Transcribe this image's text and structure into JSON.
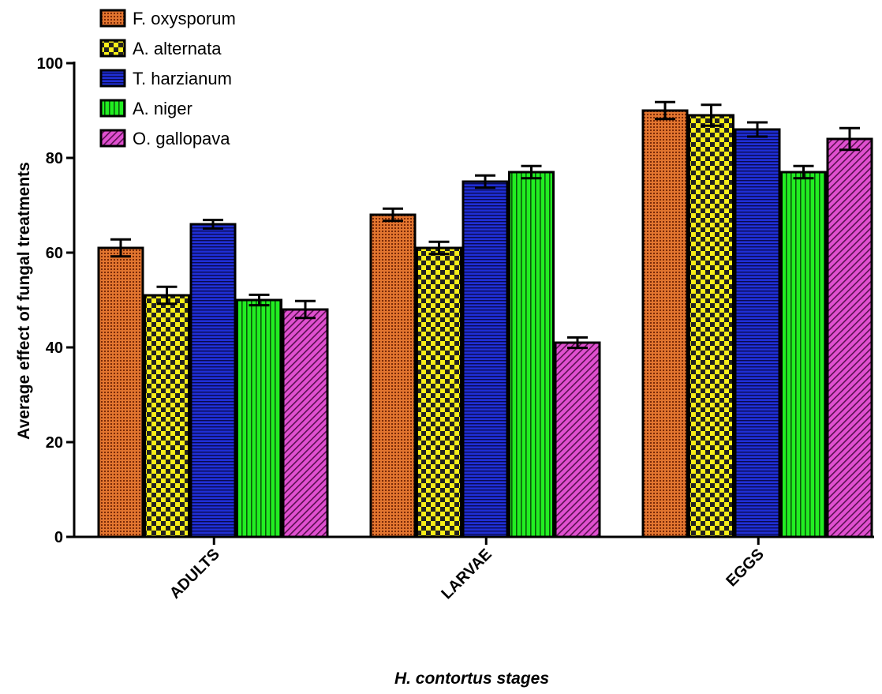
{
  "chart_data": {
    "type": "bar",
    "title": "",
    "xlabel": "H. contortus stages",
    "ylabel": "Average effect of fungal treatments",
    "ylim": [
      0,
      100
    ],
    "yticks": [
      0,
      20,
      40,
      60,
      80,
      100
    ],
    "categories": [
      "ADULTS",
      "LARVAE",
      "EGGS"
    ],
    "legend_position": "top-left",
    "grid": false,
    "series": [
      {
        "name": "F. oxysporum",
        "values": [
          61,
          68,
          90
        ],
        "errors": [
          1.8,
          1.3,
          1.8
        ],
        "color": "#e2752f",
        "pattern": "dots"
      },
      {
        "name": "A. alternata",
        "values": [
          51,
          61,
          89
        ],
        "errors": [
          1.8,
          1.3,
          2.2
        ],
        "color": "#f7ee18",
        "pattern": "checker"
      },
      {
        "name": "T. harzianum",
        "values": [
          66,
          75,
          86
        ],
        "errors": [
          0.9,
          1.3,
          1.5
        ],
        "color": "#1f2fd6",
        "pattern": "hlines"
      },
      {
        "name": "A. niger",
        "values": [
          50,
          77,
          77
        ],
        "errors": [
          1.1,
          1.3,
          1.3
        ],
        "color": "#22ee22",
        "pattern": "vlines"
      },
      {
        "name": "O. gallopava",
        "values": [
          48,
          41,
          84
        ],
        "errors": [
          1.8,
          1.1,
          2.3
        ],
        "color": "#e050d0",
        "pattern": "diag"
      }
    ]
  }
}
